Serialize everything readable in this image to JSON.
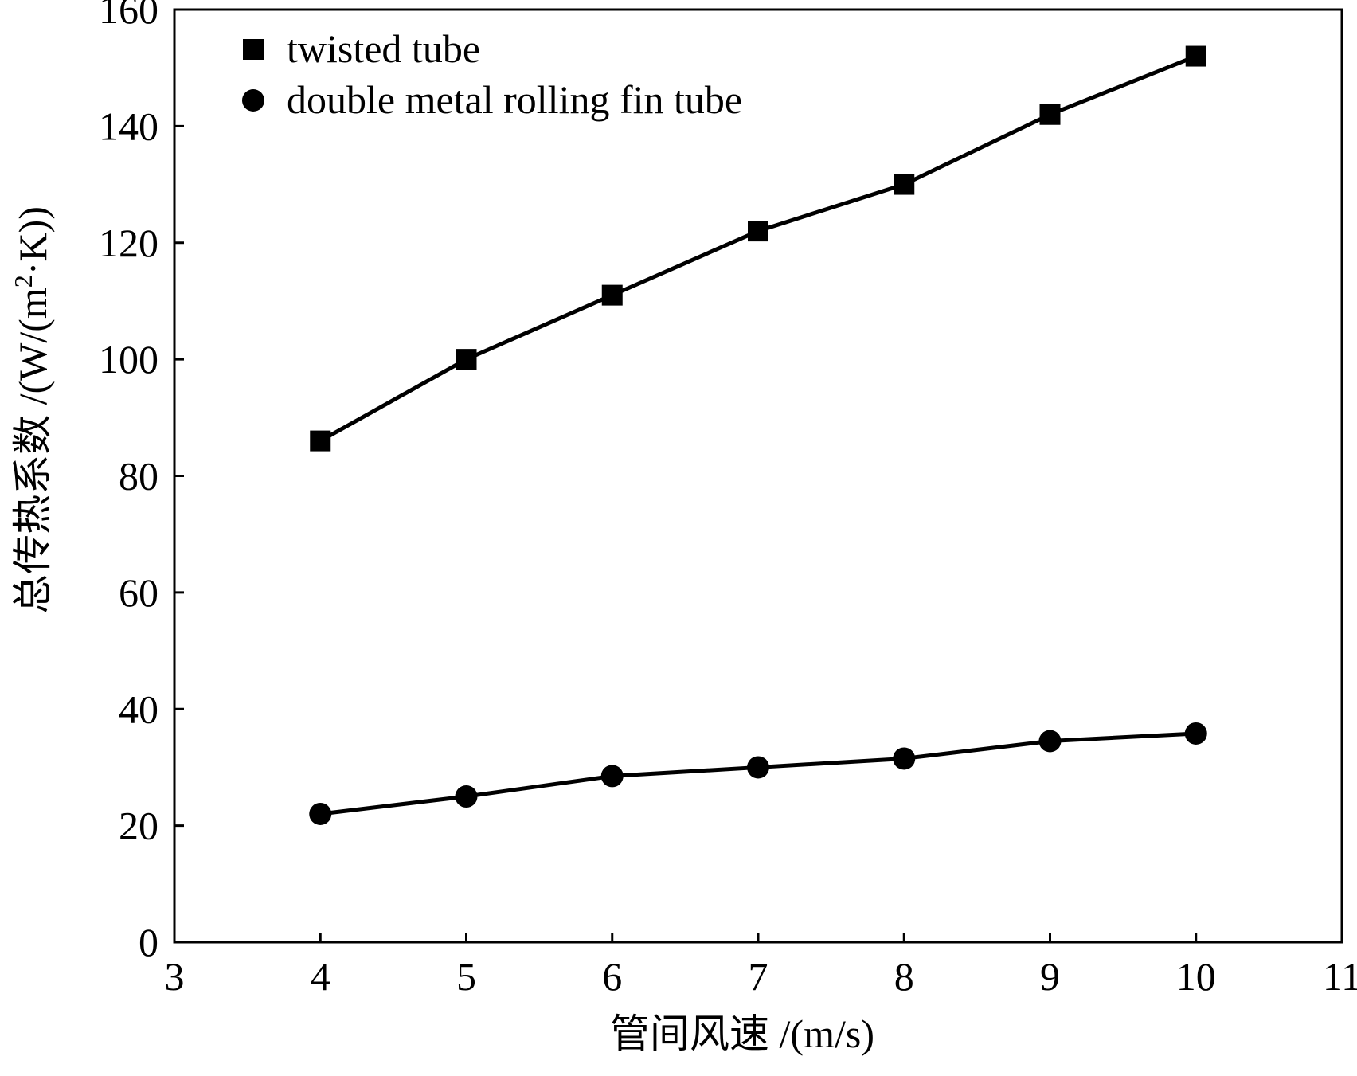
{
  "chart_data": {
    "type": "line",
    "title": "",
    "xlabel": "管间风速 /(m/s)",
    "ylabel_main": "总传热系数 /(W/(m",
    "ylabel_sup": "2",
    "ylabel_end": "·K))",
    "xlim": [
      3,
      11
    ],
    "ylim": [
      0,
      160
    ],
    "xticks": [
      3,
      4,
      5,
      6,
      7,
      8,
      9,
      10,
      11
    ],
    "yticks": [
      0,
      20,
      40,
      60,
      80,
      100,
      120,
      140,
      160
    ],
    "grid": false,
    "legend_position": "top-left",
    "series": [
      {
        "name": "twisted tube",
        "marker": "square",
        "color": "#000000",
        "x": [
          4,
          5,
          6,
          7,
          8,
          9,
          10
        ],
        "y": [
          86,
          100,
          111,
          122,
          130,
          142,
          152
        ]
      },
      {
        "name": "double metal rolling fin tube",
        "marker": "circle",
        "color": "#000000",
        "x": [
          4,
          5,
          6,
          7,
          8,
          9,
          10
        ],
        "y": [
          22,
          25,
          28.5,
          30,
          31.5,
          34.5,
          35.8
        ]
      }
    ]
  }
}
